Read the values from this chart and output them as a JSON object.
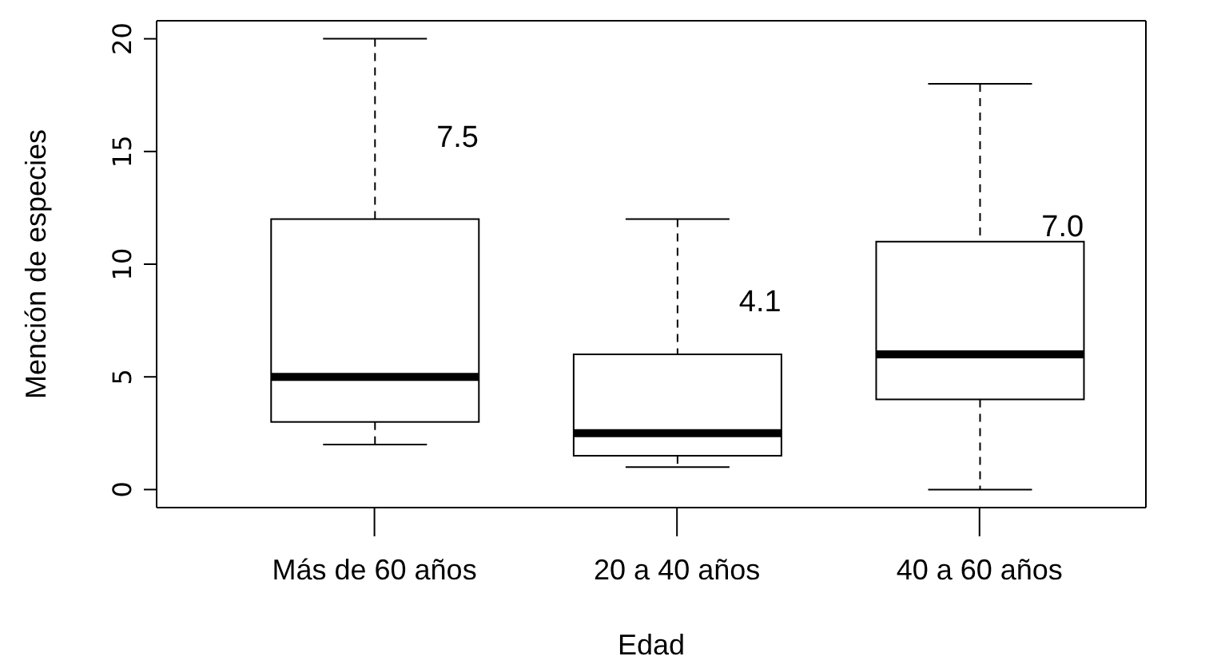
{
  "chart_data": {
    "type": "box",
    "xlabel": "Edad",
    "ylabel": "Mención de especies",
    "categories": [
      "Más de 60 años",
      "20 a 40 años",
      "40 a 60 años"
    ],
    "boxes": [
      {
        "low": 2,
        "q1": 3,
        "median": 5,
        "q3": 12,
        "high": 20
      },
      {
        "low": 1,
        "q1": 1.5,
        "median": 2.5,
        "q3": 6,
        "high": 12
      },
      {
        "low": 0,
        "q1": 4,
        "median": 6,
        "q3": 11,
        "high": 18
      }
    ],
    "ylim": [
      -0.8,
      20.8
    ],
    "yticks": [
      0,
      5,
      10,
      15,
      20
    ],
    "grid": false,
    "annotations": [
      {
        "text": "7.5",
        "x": "Más de 60 años",
        "y": 15.7
      },
      {
        "text": "4.1",
        "x": "20 a 40 años",
        "y": 8.4
      },
      {
        "text": "7.0",
        "x": "40 a 60 años",
        "y": 11.7
      }
    ]
  }
}
